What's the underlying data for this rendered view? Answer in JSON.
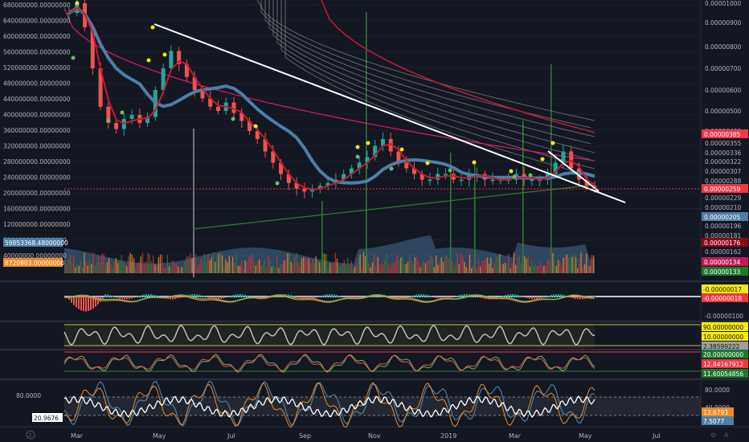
{
  "chart_data": [
    {
      "type": "line",
      "panel": "main",
      "description_left_axis": "volume",
      "left_ticks": [
        "680000000.00000000",
        "640000000.00000000",
        "600000000.00000000",
        "560000000.00000000",
        "520000000.00000000",
        "480000000.00000000",
        "440000000.00000000",
        "400000000.00000000",
        "360000000.00000000",
        "320000000.00000000",
        "280000000.00000000",
        "240000000.00000000",
        "200000000.00000000",
        "160000000.00000000",
        "120000000.00000000",
        "80000000.00000000",
        "40000000.00000000"
      ],
      "left_tags": [
        {
          "text": "59853368.48000000",
          "color": "#4f7ea6"
        },
        {
          "text": "8720803.00000000",
          "color": "#f08a24"
        }
      ],
      "right_ticks": [
        "0.00001000",
        "0.00000900",
        "0.00000800",
        "0.00000700",
        "0.00000600",
        "0.00000500",
        "0.00000400",
        "0.00000355",
        "0.00000336",
        "0.00000322",
        "0.00000307",
        "0.00000288",
        "0.00000229",
        "0.00000210",
        "0.00000196",
        "0.00000181",
        "0.00000162"
      ],
      "right_tags": [
        {
          "text": "0.00000385",
          "color": "#f23645"
        },
        {
          "text": "0.00000259",
          "color": "#f23645"
        },
        {
          "text": "0.00000205",
          "color": "#4f7ea6"
        },
        {
          "text": "0.00000176",
          "color": "#8b0a1a"
        },
        {
          "text": "0.00000134",
          "color": "#c2185b"
        },
        {
          "text": "0.00000133",
          "color": "#1b7a2b"
        }
      ],
      "price_series": [
        9.5e-06,
        1e-05,
        8.8e-06,
        7e-06,
        5.2e-06,
        4.4e-06,
        4.1e-06,
        4.6e-06,
        4.8e-06,
        4.4e-06,
        4.7e-06,
        6e-06,
        7e-06,
        7.8e-06,
        7.2e-06,
        6.6e-06,
        6e-06,
        5.6e-06,
        5.2e-06,
        5e-06,
        5.4e-06,
        4.9e-06,
        4.5e-06,
        4e-06,
        3.7e-06,
        3.4e-06,
        3.2e-06,
        3e-06,
        2.8e-06,
        2.6e-06,
        2.5e-06,
        2.6e-06,
        2.7e-06,
        2.8e-06,
        2.9e-06,
        3e-06,
        3.1e-06,
        3.2e-06,
        3.3e-06,
        3.5e-06,
        3.7e-06,
        3.4e-06,
        3.2e-06,
        3.1e-06,
        3e-06,
        2.9e-06,
        2.9e-06,
        3e-06,
        3e-06,
        2.9e-06,
        2.9e-06,
        3e-06,
        3e-06,
        2.9e-06,
        2.9e-06,
        2.9e-06,
        2.9e-06,
        3e-06,
        2.9e-06,
        2.9e-06,
        2.9e-06,
        3e-06,
        3.2e-06,
        3.4e-06,
        3.1e-06,
        2.9e-06,
        2.7e-06,
        2.6e-06
      ]
    },
    {
      "type": "line",
      "panel": "macd",
      "right_ticks": [
        "-0.00000100"
      ],
      "right_tags": [
        {
          "text": "-0.00000017",
          "color": "#f5e90c"
        },
        {
          "text": "-0.00000018",
          "color": "#f23645"
        }
      ]
    },
    {
      "type": "line",
      "panel": "rsi-gray",
      "right_tags": [
        {
          "text": "90.00000000",
          "color": "#f5e90c"
        },
        {
          "text": "10.00000000",
          "color": "#f5e90c"
        },
        {
          "text": "2.38599222",
          "color": "#9e9e9e"
        }
      ]
    },
    {
      "type": "line",
      "panel": "stoch",
      "right_tags": [
        {
          "text": "20.00000000",
          "color": "#1b7a2b"
        },
        {
          "text": "12.84167912",
          "color": "#f23645"
        },
        {
          "text": "11.60054856",
          "color": "#1b7a2b"
        }
      ]
    },
    {
      "type": "line",
      "panel": "oscillator",
      "left_ticks": [
        "80.0000"
      ],
      "left_tag": {
        "text": "20.9676",
        "color": "#ffffff"
      },
      "right_ticks": [
        "80.0000",
        "40.0000"
      ],
      "right_tags": [
        {
          "text": "13.6793",
          "color": "#f08a24"
        },
        {
          "text": "7.5077",
          "color": "#4f7ea6"
        }
      ]
    }
  ],
  "x_axis": {
    "labels": [
      "Mar",
      "May",
      "Jul",
      "Sep",
      "Nov",
      "2019",
      "Mar",
      "May",
      "Jul"
    ]
  },
  "colors": {
    "background": "#131722",
    "grid": "#1e2230",
    "candle_up": "#26a69a",
    "candle_down": "#ef5350",
    "ma_blue": "#4f7ea6",
    "ma_red": "#c41a2f",
    "trendline": "#ffffff"
  }
}
